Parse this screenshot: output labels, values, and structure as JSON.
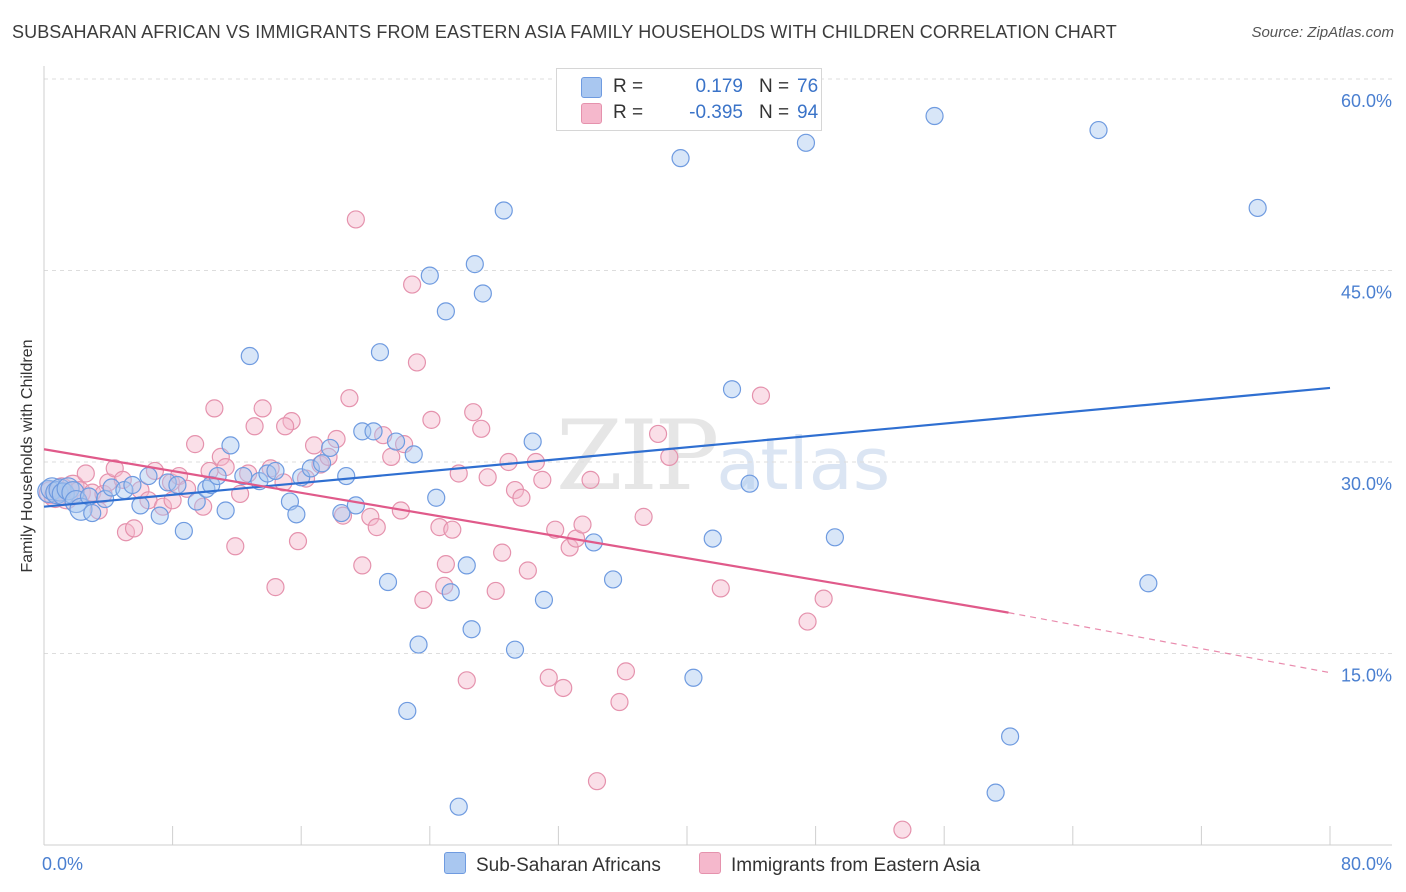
{
  "title": "SUBSAHARAN AFRICAN VS IMMIGRANTS FROM EASTERN ASIA FAMILY HOUSEHOLDS WITH CHILDREN CORRELATION CHART",
  "source": "Source: ZipAtlas.com",
  "watermark": {
    "zip": "ZIP",
    "atlas": "atlas"
  },
  "legend": {
    "rows": [
      {
        "r_label": "R =",
        "r_value": "0.179",
        "n_label": "N =",
        "n_value": "76",
        "color": "#a9c7f0"
      },
      {
        "r_label": "R =",
        "r_value": "-0.395",
        "n_label": "N =",
        "n_value": "94",
        "color": "#f5b8cc"
      }
    ]
  },
  "bottom_legend": {
    "blue": "Sub-Saharan Africans",
    "pink": "Immigrants from Eastern Asia"
  },
  "colors": {
    "blue_fill": "#a9c7f0",
    "blue_stroke": "#6f9be0",
    "blue_line": "#2f6fd1",
    "pink_fill": "#f5b8cc",
    "pink_stroke": "#e592ad",
    "pink_line": "#e05a8a",
    "tick_text": "#4a7fd0",
    "grid": "#dddddd"
  },
  "chart_data": {
    "type": "scatter",
    "title": "SUBSAHARAN AFRICAN VS IMMIGRANTS FROM EASTERN ASIA FAMILY HOUSEHOLDS WITH CHILDREN CORRELATION CHART",
    "xlabel": "",
    "ylabel": "Family Households with Children",
    "xlim": [
      0,
      80
    ],
    "ylim": [
      0,
      60
    ],
    "x_tick_labels": [
      "0.0%",
      "80.0%"
    ],
    "y_ticks": [
      15,
      30,
      45,
      60
    ],
    "y_tick_labels": [
      "15.0%",
      "30.0%",
      "45.0%",
      "60.0%"
    ],
    "grid": true,
    "series": [
      {
        "name": "Sub-Saharan Africans",
        "r": 0.179,
        "n": 76,
        "trend": {
          "x": [
            0,
            80
          ],
          "y": [
            26.5,
            35.8
          ]
        },
        "points": [
          [
            0.3,
            27.7
          ],
          [
            0.5,
            27.9
          ],
          [
            0.8,
            27.6
          ],
          [
            1.0,
            27.8
          ],
          [
            1.2,
            27.5
          ],
          [
            1.5,
            27.9
          ],
          [
            1.8,
            27.6
          ],
          [
            2.0,
            26.9
          ],
          [
            2.3,
            26.3
          ],
          [
            2.8,
            27.3
          ],
          [
            3.0,
            26.0
          ],
          [
            3.8,
            27.1
          ],
          [
            4.2,
            28.0
          ],
          [
            5.0,
            27.8
          ],
          [
            5.5,
            28.2
          ],
          [
            6.0,
            26.6
          ],
          [
            6.5,
            28.9
          ],
          [
            7.2,
            25.8
          ],
          [
            7.7,
            28.4
          ],
          [
            8.3,
            28.2
          ],
          [
            8.7,
            24.6
          ],
          [
            9.5,
            26.9
          ],
          [
            10.1,
            27.9
          ],
          [
            10.4,
            28.2
          ],
          [
            10.8,
            28.9
          ],
          [
            11.3,
            26.2
          ],
          [
            11.6,
            31.3
          ],
          [
            12.4,
            28.9
          ],
          [
            12.8,
            38.3
          ],
          [
            13.4,
            28.5
          ],
          [
            13.9,
            29.1
          ],
          [
            14.4,
            29.3
          ],
          [
            15.3,
            26.9
          ],
          [
            15.7,
            25.9
          ],
          [
            16.0,
            28.8
          ],
          [
            16.6,
            29.5
          ],
          [
            17.3,
            29.9
          ],
          [
            17.8,
            31.1
          ],
          [
            18.5,
            26.0
          ],
          [
            18.8,
            28.9
          ],
          [
            19.4,
            26.6
          ],
          [
            19.8,
            32.4
          ],
          [
            20.5,
            32.4
          ],
          [
            20.9,
            38.6
          ],
          [
            21.4,
            20.6
          ],
          [
            21.9,
            31.6
          ],
          [
            22.6,
            10.5
          ],
          [
            23.0,
            30.6
          ],
          [
            23.3,
            15.7
          ],
          [
            24.0,
            44.6
          ],
          [
            24.4,
            27.2
          ],
          [
            25.0,
            41.8
          ],
          [
            25.3,
            19.8
          ],
          [
            25.8,
            3.0
          ],
          [
            26.3,
            21.9
          ],
          [
            26.6,
            16.9
          ],
          [
            26.8,
            45.5
          ],
          [
            27.3,
            43.2
          ],
          [
            28.6,
            49.7
          ],
          [
            29.3,
            15.3
          ],
          [
            30.4,
            31.6
          ],
          [
            31.1,
            19.2
          ],
          [
            34.2,
            23.7
          ],
          [
            35.4,
            20.8
          ],
          [
            39.6,
            53.8
          ],
          [
            40.4,
            13.1
          ],
          [
            41.6,
            24.0
          ],
          [
            42.8,
            35.7
          ],
          [
            43.9,
            28.3
          ],
          [
            47.4,
            55.0
          ],
          [
            49.2,
            24.1
          ],
          [
            55.4,
            57.1
          ],
          [
            59.2,
            4.1
          ],
          [
            60.1,
            8.5
          ],
          [
            65.6,
            56.0
          ],
          [
            68.7,
            20.5
          ],
          [
            75.5,
            49.9
          ]
        ]
      },
      {
        "name": "Immigrants from Eastern Asia",
        "r": -0.395,
        "n": 94,
        "trend": {
          "x": [
            0,
            60
          ],
          "y": [
            31.0,
            18.2
          ]
        },
        "trend_dashed": {
          "x": [
            60,
            80
          ],
          "y": [
            18.2,
            13.5
          ]
        },
        "points": [
          [
            0.4,
            27.6
          ],
          [
            0.7,
            27.3
          ],
          [
            1.1,
            27.9
          ],
          [
            1.4,
            27.2
          ],
          [
            1.8,
            28.1
          ],
          [
            2.2,
            27.6
          ],
          [
            2.6,
            29.1
          ],
          [
            3.0,
            27.6
          ],
          [
            3.4,
            26.2
          ],
          [
            3.7,
            27.5
          ],
          [
            4.0,
            28.4
          ],
          [
            4.4,
            29.5
          ],
          [
            4.9,
            28.6
          ],
          [
            5.1,
            24.5
          ],
          [
            5.6,
            24.8
          ],
          [
            6.0,
            27.8
          ],
          [
            6.5,
            27.0
          ],
          [
            6.9,
            29.3
          ],
          [
            7.4,
            26.5
          ],
          [
            7.9,
            28.4
          ],
          [
            8.4,
            28.9
          ],
          [
            8.9,
            27.9
          ],
          [
            9.4,
            31.4
          ],
          [
            9.9,
            26.5
          ],
          [
            10.3,
            29.3
          ],
          [
            10.6,
            34.2
          ],
          [
            11.0,
            30.4
          ],
          [
            11.3,
            29.6
          ],
          [
            11.9,
            23.4
          ],
          [
            12.2,
            27.5
          ],
          [
            12.7,
            29.1
          ],
          [
            13.1,
            32.8
          ],
          [
            13.6,
            34.2
          ],
          [
            14.1,
            29.5
          ],
          [
            14.4,
            20.2
          ],
          [
            14.9,
            28.4
          ],
          [
            15.4,
            33.2
          ],
          [
            15.8,
            23.8
          ],
          [
            16.3,
            28.7
          ],
          [
            16.8,
            31.3
          ],
          [
            17.2,
            29.8
          ],
          [
            17.7,
            30.4
          ],
          [
            18.2,
            31.8
          ],
          [
            18.6,
            25.8
          ],
          [
            19.0,
            35.0
          ],
          [
            19.4,
            49.0
          ],
          [
            19.8,
            21.9
          ],
          [
            20.3,
            25.7
          ],
          [
            20.7,
            24.9
          ],
          [
            21.1,
            32.1
          ],
          [
            21.6,
            30.4
          ],
          [
            22.2,
            26.2
          ],
          [
            22.4,
            31.4
          ],
          [
            22.9,
            43.9
          ],
          [
            23.2,
            37.8
          ],
          [
            23.6,
            19.2
          ],
          [
            24.1,
            33.3
          ],
          [
            24.6,
            24.9
          ],
          [
            25.0,
            22.0
          ],
          [
            25.4,
            24.7
          ],
          [
            25.8,
            29.1
          ],
          [
            26.3,
            12.9
          ],
          [
            26.7,
            33.9
          ],
          [
            27.2,
            32.6
          ],
          [
            27.6,
            28.8
          ],
          [
            28.1,
            19.9
          ],
          [
            28.5,
            22.9
          ],
          [
            28.9,
            30.0
          ],
          [
            29.3,
            27.8
          ],
          [
            29.7,
            27.2
          ],
          [
            30.1,
            21.5
          ],
          [
            30.6,
            30.0
          ],
          [
            31.0,
            28.6
          ],
          [
            31.4,
            13.1
          ],
          [
            31.8,
            24.7
          ],
          [
            32.3,
            12.3
          ],
          [
            32.7,
            23.3
          ],
          [
            33.1,
            24.0
          ],
          [
            33.5,
            25.1
          ],
          [
            34.0,
            28.6
          ],
          [
            34.4,
            5.0
          ],
          [
            35.8,
            11.2
          ],
          [
            36.2,
            13.6
          ],
          [
            37.3,
            25.7
          ],
          [
            38.2,
            32.2
          ],
          [
            38.9,
            30.4
          ],
          [
            42.1,
            20.1
          ],
          [
            44.6,
            35.2
          ],
          [
            47.5,
            17.5
          ],
          [
            48.5,
            19.3
          ],
          [
            53.4,
            1.2
          ],
          [
            24.9,
            20.3
          ],
          [
            15.0,
            32.8
          ],
          [
            8.0,
            27.0
          ]
        ]
      }
    ]
  }
}
